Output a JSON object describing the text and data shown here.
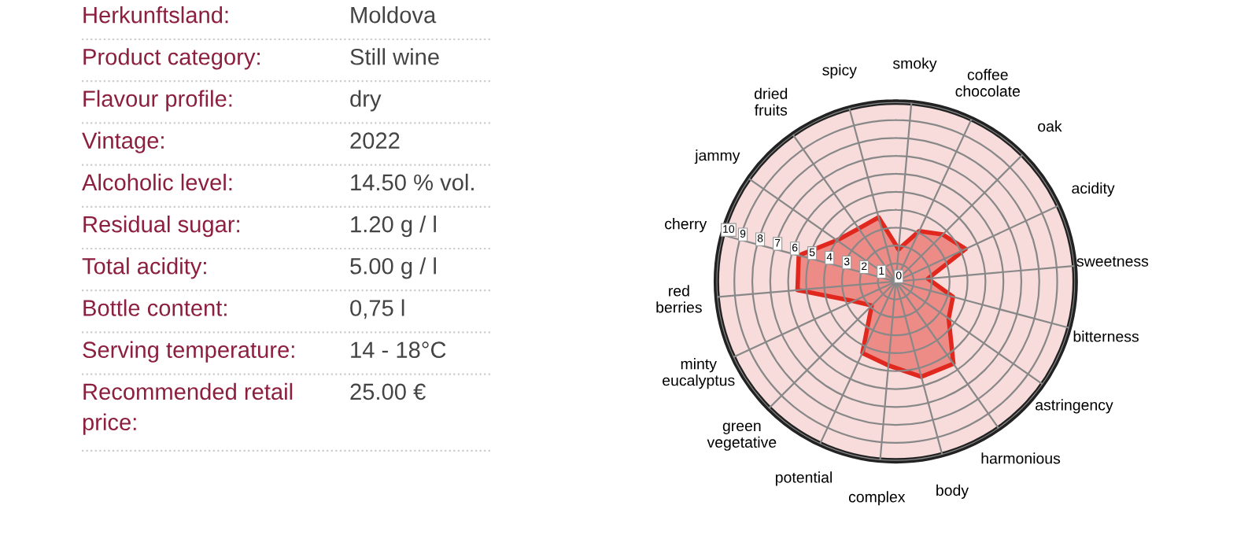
{
  "chart_data": [
    {
      "type": "other",
      "annotations": [
        "Herkunftsland:",
        "Moldova",
        "Product category:",
        "Still wine",
        "Flavour profile:",
        "dry",
        "Vintage:",
        "2022",
        "Alcoholic level:",
        "14.50 % vol.",
        "Residual sugar:",
        "1.20 g / l",
        "Total acidity:",
        "5.00 g / l",
        "Bottle content:",
        "0,75 l",
        "Serving temperature:",
        "14 - 18°C",
        "Recommended retail\nprice:",
        "25.00 €"
      ]
    },
    {
      "type": "radar",
      "categories": [
        "smoky",
        "coffee\nchocolate",
        "oak",
        "acidity",
        "sweetness",
        "bitterness",
        "astringency",
        "harmonious",
        "body",
        "complex",
        "potential",
        "green\nvegetative",
        "minty\neucalyptus",
        "red\nberries",
        "cherry",
        "jammy",
        "dried\nfruits",
        "spicy"
      ],
      "series": [
        {
          "color": "#e0281f",
          "values": [
            1.8,
            3.1,
            3.7,
            4.3,
            1.8,
            3.3,
            3.6,
            5.6,
            5.5,
            4.7,
            4.4,
            1.9,
            2.6,
            5.5,
            5.6,
            4.0,
            3.6,
            3.7
          ]
        }
      ],
      "ylim": [
        0,
        10
      ],
      "yticks": [
        0,
        1,
        2,
        3,
        4,
        5,
        6,
        7,
        8,
        9,
        10
      ],
      "grid": true
    }
  ]
}
